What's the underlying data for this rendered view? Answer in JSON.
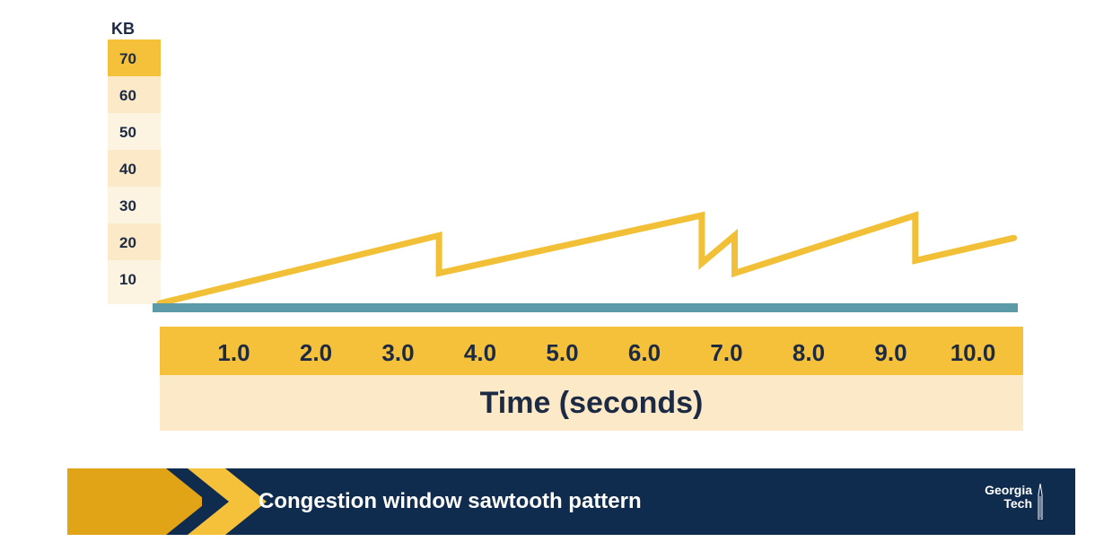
{
  "chart_data": {
    "type": "line",
    "ylabel": "KB",
    "xlabel": "Time (seconds)",
    "y_ticks": [
      "70",
      "60",
      "50",
      "40",
      "30",
      "20",
      "10"
    ],
    "x_ticks": [
      "1.0",
      "2.0",
      "3.0",
      "4.0",
      "5.0",
      "6.0",
      "7.0",
      "8.0",
      "9.0",
      "10.0"
    ],
    "ylim": [
      0,
      70
    ],
    "xlim": [
      0,
      10.5
    ],
    "grid": false,
    "series": [
      {
        "x": [
          0,
          3.4,
          3.4,
          6.6,
          6.6,
          7.0,
          7.0,
          9.2,
          9.2,
          10.4
        ],
        "y": [
          0,
          27,
          12,
          35,
          16,
          27,
          12,
          35,
          17,
          26
        ]
      }
    ],
    "colors": {
      "line": "#f2c037",
      "baseline": "#5b9aa6",
      "tick_band": "#f5c13a",
      "title_band": "#fbe9c8",
      "y_band_top": "#f5c13a",
      "y_band_dark": "#fbe9c8",
      "y_band_light": "#fdf3e1",
      "text": "#1c2a44"
    }
  },
  "footer": {
    "title": "Congestion window sawtooth pattern",
    "logo_line1": "Georgia",
    "logo_line2": "Tech",
    "colors": {
      "background": "#0f2c4f",
      "accent": "#e2a417",
      "chevron": "#f5c13a"
    }
  }
}
